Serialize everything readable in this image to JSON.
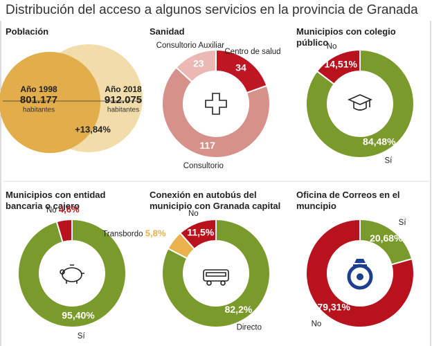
{
  "title": "Distribución del acceso a algunos servicios en la provincia de Granada",
  "chart_data": [
    {
      "type": "venn",
      "title": "Población",
      "categories": [
        "Año 1998",
        "Año 2018"
      ],
      "values": [
        801177,
        912075
      ],
      "value_labels": [
        "801.177",
        "912.075"
      ],
      "unit": "habitantes",
      "colors": [
        "#e2ad4b",
        "#f2dcaa"
      ],
      "change": 13.84,
      "change_label": "+13,84%"
    },
    {
      "type": "donut",
      "title": "Sanidad",
      "categories": [
        "Centro de salud",
        "Consultorio",
        "Consultorio Auxiliar"
      ],
      "values": [
        34,
        117,
        23
      ],
      "colors": [
        "#be1622",
        "#d6918b",
        "#ebb8b4"
      ]
    },
    {
      "type": "donut",
      "title": "Municipios con colegio público",
      "categories": [
        "Sí",
        "No"
      ],
      "values": [
        84.48,
        14.51
      ],
      "value_labels": [
        "84,48%",
        "14,51%"
      ],
      "colors": [
        "#7b9a2c",
        "#b8121c"
      ]
    },
    {
      "type": "donut",
      "title": "Municipios con entidad bancaria o cajero",
      "categories": [
        "Sí",
        "No"
      ],
      "values": [
        95.4,
        4.6
      ],
      "value_labels": [
        "95,40%",
        "4,6%"
      ],
      "colors": [
        "#7b9a2c",
        "#b8121c"
      ]
    },
    {
      "type": "donut",
      "title": "Conexión en autobús del municipio con Granada capital",
      "categories": [
        "Directo",
        "Transbordo",
        "No"
      ],
      "values": [
        82.2,
        5.8,
        11.5
      ],
      "value_labels": [
        "82,2%",
        "5,8%",
        "11,5%"
      ],
      "colors": [
        "#7b9a2c",
        "#e9b24c",
        "#b8121c"
      ]
    },
    {
      "type": "donut",
      "title": "Oficina de Correos en el muncipio",
      "categories": [
        "Sí",
        "No"
      ],
      "values": [
        20.68,
        79.31
      ],
      "value_labels": [
        "20,68%",
        "79,31%"
      ],
      "colors": [
        "#7b9a2c",
        "#b8121c"
      ]
    }
  ]
}
